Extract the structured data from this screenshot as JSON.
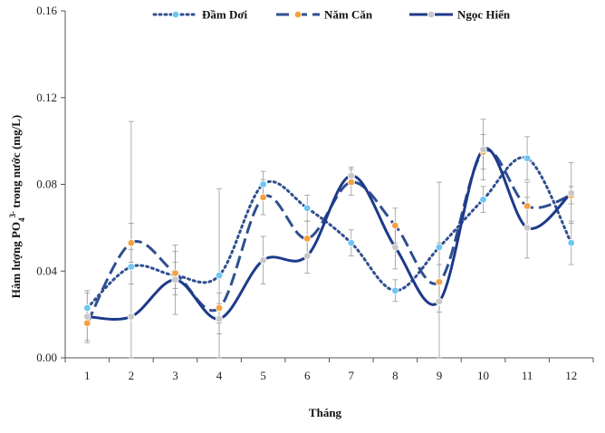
{
  "chart_data": {
    "type": "line",
    "xlabel": "Tháng",
    "ylabel_main": "Hàm lượng  PO",
    "ylabel_sub": "4",
    "ylabel_sup": "3-",
    "ylabel_rest": "  trong nước (mg/L)",
    "x_ticks": [
      "1",
      "2",
      "3",
      "4",
      "5",
      "6",
      "7",
      "8",
      "9",
      "10",
      "11",
      "12"
    ],
    "y_ticks": [
      "0.00",
      "0.04",
      "0.08",
      "0.12",
      "0.16"
    ],
    "ylim": [
      0,
      0.16
    ],
    "xlim": [
      0.5,
      12.5
    ],
    "grid": false,
    "legend_position": "top",
    "x": [
      1,
      2,
      3,
      4,
      5,
      6,
      7,
      8,
      9,
      10,
      11,
      12
    ],
    "series": [
      {
        "name": "Đầm Dơi",
        "style": "dotted",
        "color": "#2f4f8f",
        "marker_color": "#6ec6f2",
        "values": [
          0.023,
          0.042,
          0.038,
          0.038,
          0.08,
          0.069,
          0.053,
          0.031,
          0.051,
          0.073,
          0.092,
          0.053
        ],
        "errors": [
          0.007,
          0.008,
          0.006,
          0.04,
          0.006,
          0.006,
          0.006,
          0.005,
          0.03,
          0.006,
          0.01,
          0.01
        ]
      },
      {
        "name": "Năm Căn",
        "style": "dashed",
        "color": "#2f4f8f",
        "marker_color": "#f5a142",
        "values": [
          0.016,
          0.053,
          0.039,
          0.023,
          0.074,
          0.055,
          0.081,
          0.061,
          0.035,
          0.095,
          0.07,
          0.075
        ],
        "errors": [
          0.008,
          0.009,
          0.01,
          0.007,
          0.008,
          0.008,
          0.006,
          0.008,
          0.008,
          0.008,
          0.011,
          0.004
        ]
      },
      {
        "name": "Ngọc Hiển",
        "style": "solid",
        "color": "#1d3a8a",
        "marker_color": "#c8c8c8",
        "values": [
          0.019,
          0.019,
          0.036,
          0.018,
          0.045,
          0.047,
          0.084,
          0.051,
          0.026,
          0.096,
          0.06,
          0.076
        ],
        "errors": [
          0.012,
          0.09,
          0.016,
          0.007,
          0.011,
          0.008,
          0.004,
          0.01,
          0.027,
          0.014,
          0.014,
          0.014
        ]
      }
    ]
  }
}
